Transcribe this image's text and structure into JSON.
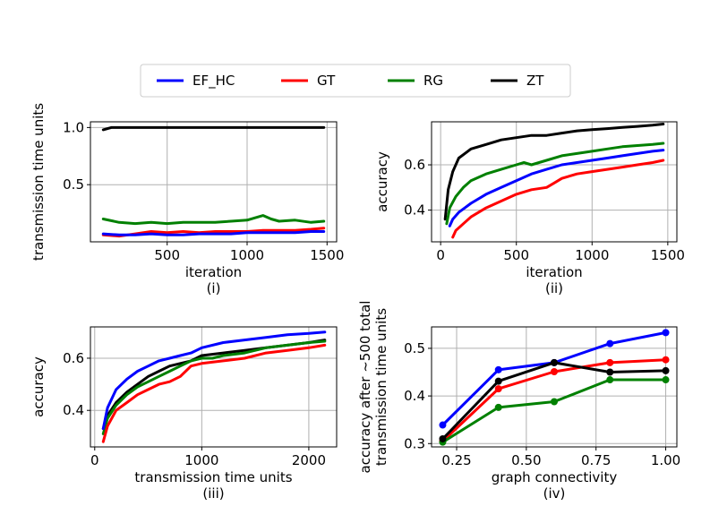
{
  "colors": {
    "EF_HC": "#0000ff",
    "GT": "#ff0000",
    "RG": "#008000",
    "ZT": "#000000"
  },
  "legend": [
    {
      "key": "EF_HC",
      "label": "EF_HC"
    },
    {
      "key": "GT",
      "label": "GT"
    },
    {
      "key": "RG",
      "label": "RG"
    },
    {
      "key": "ZT",
      "label": "ZT"
    }
  ],
  "chart_data": [
    {
      "id": "i",
      "type": "line",
      "caption": "(i)",
      "xlabel": "iteration",
      "ylabel": "transmission time units",
      "xlim": [
        20,
        1560
      ],
      "ylim": [
        0.0,
        1.05
      ],
      "xticks": [
        500,
        1000,
        1500
      ],
      "xtick_labels": [
        "500",
        "1000",
        "1500"
      ],
      "yticks": [
        0.5,
        1.0
      ],
      "ytick_labels": [
        "0.5",
        "1.0"
      ],
      "series": [
        {
          "key": "ZT",
          "x": [
            100,
            150,
            200,
            400,
            600,
            800,
            1000,
            1200,
            1400,
            1480
          ],
          "y": [
            0.98,
            1.0,
            1.0,
            1.0,
            1.0,
            1.0,
            1.0,
            1.0,
            1.0,
            1.0
          ]
        },
        {
          "key": "RG",
          "x": [
            100,
            200,
            300,
            400,
            500,
            600,
            700,
            800,
            900,
            1000,
            1050,
            1100,
            1150,
            1200,
            1300,
            1400,
            1480
          ],
          "y": [
            0.2,
            0.17,
            0.16,
            0.17,
            0.16,
            0.17,
            0.17,
            0.17,
            0.18,
            0.19,
            0.21,
            0.23,
            0.2,
            0.18,
            0.19,
            0.17,
            0.18
          ]
        },
        {
          "key": "GT",
          "x": [
            100,
            200,
            300,
            400,
            500,
            600,
            700,
            800,
            900,
            1000,
            1100,
            1200,
            1300,
            1400,
            1480
          ],
          "y": [
            0.06,
            0.05,
            0.07,
            0.09,
            0.08,
            0.09,
            0.08,
            0.09,
            0.09,
            0.09,
            0.1,
            0.1,
            0.1,
            0.11,
            0.12
          ]
        },
        {
          "key": "EF_HC",
          "x": [
            100,
            200,
            300,
            400,
            500,
            600,
            700,
            800,
            900,
            1000,
            1100,
            1200,
            1300,
            1400,
            1480
          ],
          "y": [
            0.07,
            0.06,
            0.06,
            0.07,
            0.06,
            0.06,
            0.07,
            0.07,
            0.07,
            0.08,
            0.08,
            0.08,
            0.08,
            0.09,
            0.09
          ]
        }
      ]
    },
    {
      "id": "ii",
      "type": "line",
      "caption": "(ii)",
      "xlabel": "iteration",
      "ylabel": "accuracy",
      "xlim": [
        -60,
        1560
      ],
      "ylim": [
        0.26,
        0.79
      ],
      "xticks": [
        0,
        500,
        1000,
        1500
      ],
      "xtick_labels": [
        "0",
        "500",
        "1000",
        "1500"
      ],
      "yticks": [
        0.4,
        0.6
      ],
      "ytick_labels": [
        "0.4",
        "0.6"
      ],
      "series": [
        {
          "key": "ZT",
          "x": [
            30,
            50,
            80,
            120,
            160,
            200,
            300,
            400,
            500,
            600,
            700,
            800,
            900,
            1000,
            1100,
            1200,
            1300,
            1400,
            1470
          ],
          "y": [
            0.36,
            0.49,
            0.57,
            0.63,
            0.65,
            0.67,
            0.69,
            0.71,
            0.72,
            0.73,
            0.73,
            0.74,
            0.75,
            0.755,
            0.76,
            0.765,
            0.77,
            0.775,
            0.78
          ]
        },
        {
          "key": "RG",
          "x": [
            40,
            60,
            100,
            150,
            200,
            300,
            400,
            500,
            550,
            600,
            700,
            800,
            900,
            1000,
            1100,
            1200,
            1300,
            1400,
            1470
          ],
          "y": [
            0.34,
            0.41,
            0.46,
            0.5,
            0.53,
            0.56,
            0.58,
            0.6,
            0.61,
            0.6,
            0.62,
            0.64,
            0.65,
            0.66,
            0.67,
            0.68,
            0.685,
            0.69,
            0.695
          ]
        },
        {
          "key": "EF_HC",
          "x": [
            60,
            80,
            120,
            160,
            200,
            300,
            400,
            500,
            600,
            700,
            800,
            900,
            1000,
            1100,
            1200,
            1300,
            1400,
            1470
          ],
          "y": [
            0.33,
            0.36,
            0.39,
            0.41,
            0.43,
            0.47,
            0.5,
            0.53,
            0.56,
            0.58,
            0.6,
            0.61,
            0.62,
            0.63,
            0.64,
            0.65,
            0.66,
            0.665
          ]
        },
        {
          "key": "GT",
          "x": [
            80,
            100,
            150,
            200,
            300,
            400,
            500,
            600,
            700,
            750,
            800,
            900,
            1000,
            1100,
            1200,
            1300,
            1400,
            1470
          ],
          "y": [
            0.28,
            0.31,
            0.34,
            0.37,
            0.41,
            0.44,
            0.47,
            0.49,
            0.5,
            0.52,
            0.54,
            0.56,
            0.57,
            0.58,
            0.59,
            0.6,
            0.61,
            0.62
          ]
        }
      ]
    },
    {
      "id": "iii",
      "type": "line",
      "caption": "(iii)",
      "xlabel": "transmission time units",
      "ylabel": "accuracy",
      "xlim": [
        -40,
        2260
      ],
      "ylim": [
        0.26,
        0.72
      ],
      "xticks": [
        0,
        1000,
        2000
      ],
      "xtick_labels": [
        "0",
        "1000",
        "2000"
      ],
      "yticks": [
        0.4,
        0.6
      ],
      "ytick_labels": [
        "0.4",
        "0.6"
      ],
      "series": [
        {
          "key": "ZT",
          "x": [
            80,
            120,
            200,
            300,
            400,
            500,
            600,
            700,
            800,
            900,
            1000,
            1200,
            1400,
            1600,
            1800,
            2000,
            2150
          ],
          "y": [
            0.33,
            0.38,
            0.43,
            0.47,
            0.5,
            0.53,
            0.55,
            0.57,
            0.58,
            0.59,
            0.61,
            0.62,
            0.63,
            0.64,
            0.65,
            0.66,
            0.67
          ]
        },
        {
          "key": "RG",
          "x": [
            80,
            120,
            200,
            300,
            400,
            500,
            600,
            700,
            800,
            900,
            1000,
            1100,
            1200,
            1400,
            1600,
            1800,
            2000,
            2150
          ],
          "y": [
            0.31,
            0.37,
            0.42,
            0.46,
            0.49,
            0.51,
            0.53,
            0.55,
            0.57,
            0.59,
            0.6,
            0.6,
            0.61,
            0.62,
            0.64,
            0.65,
            0.66,
            0.665
          ]
        },
        {
          "key": "EF_HC",
          "x": [
            80,
            120,
            200,
            300,
            400,
            500,
            600,
            700,
            800,
            900,
            1000,
            1200,
            1400,
            1600,
            1800,
            2000,
            2150
          ],
          "y": [
            0.33,
            0.41,
            0.48,
            0.52,
            0.55,
            0.57,
            0.59,
            0.6,
            0.61,
            0.62,
            0.64,
            0.66,
            0.67,
            0.68,
            0.69,
            0.695,
            0.7
          ]
        },
        {
          "key": "GT",
          "x": [
            80,
            120,
            200,
            300,
            400,
            500,
            600,
            700,
            800,
            900,
            1000,
            1200,
            1400,
            1600,
            1800,
            2000,
            2150
          ],
          "y": [
            0.28,
            0.34,
            0.4,
            0.43,
            0.46,
            0.48,
            0.5,
            0.51,
            0.53,
            0.57,
            0.58,
            0.59,
            0.6,
            0.62,
            0.63,
            0.64,
            0.65
          ]
        }
      ]
    },
    {
      "id": "iv",
      "type": "line",
      "caption": "(iv)",
      "xlabel": "graph connectivity",
      "ylabel": "accuracy after ~500 total transmission time units",
      "ylabel_lines": [
        "accuracy after ~500 total",
        "transmission time units"
      ],
      "markers": true,
      "xlim": [
        0.16,
        1.04
      ],
      "ylim": [
        0.293,
        0.545
      ],
      "xticks": [
        0.25,
        0.5,
        0.75,
        1.0
      ],
      "xtick_labels": [
        "0.25",
        "0.50",
        "0.75",
        "1.00"
      ],
      "yticks": [
        0.3,
        0.4,
        0.5
      ],
      "ytick_labels": [
        "0.3",
        "0.4",
        "0.5"
      ],
      "series": [
        {
          "key": "EF_HC",
          "x": [
            0.2,
            0.4,
            0.6,
            0.8,
            1.0
          ],
          "y": [
            0.339,
            0.455,
            0.47,
            0.51,
            0.533
          ]
        },
        {
          "key": "GT",
          "x": [
            0.2,
            0.4,
            0.6,
            0.8,
            1.0
          ],
          "y": [
            0.305,
            0.415,
            0.451,
            0.47,
            0.476
          ]
        },
        {
          "key": "RG",
          "x": [
            0.2,
            0.4,
            0.6,
            0.8,
            1.0
          ],
          "y": [
            0.303,
            0.376,
            0.388,
            0.434,
            0.434
          ]
        },
        {
          "key": "ZT",
          "x": [
            0.2,
            0.4,
            0.6,
            0.8,
            1.0
          ],
          "y": [
            0.31,
            0.431,
            0.47,
            0.45,
            0.453
          ]
        }
      ]
    }
  ]
}
